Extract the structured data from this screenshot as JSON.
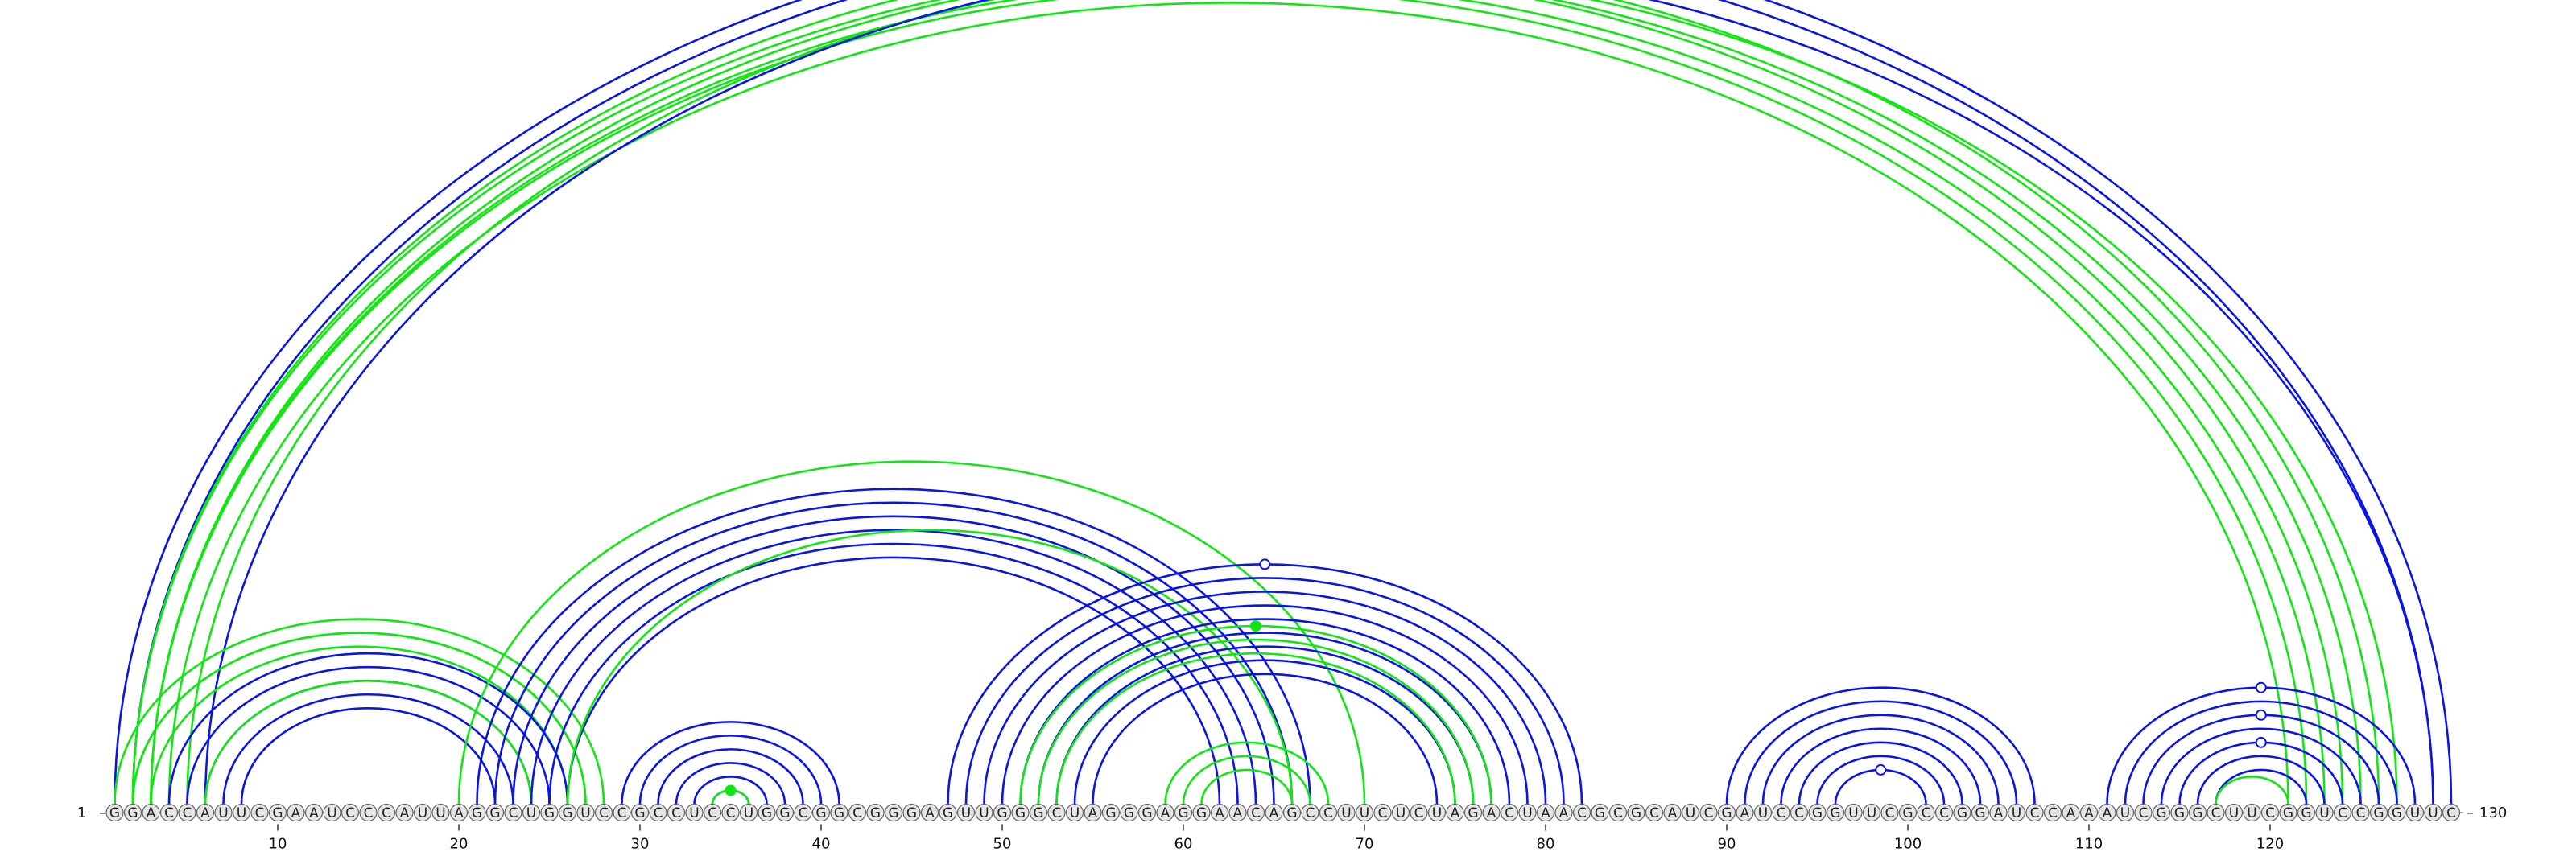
{
  "sequence": "GGACCAUUCGAAUCCCAUUAGGCUGGUCCGCCUCCUGGCGGCGGGAGUUGGGCUAGGGAGGAACAGCCUUCUCUAGACUAACGCGCAUCGAUCCGGUUCGCCGGAUCCAAAUCGGGCUUCGGUCCGGUUC",
  "start_label": "1",
  "end_label": "130",
  "ticks": [
    {
      "pos": 10,
      "label": "10"
    },
    {
      "pos": 20,
      "label": "20"
    },
    {
      "pos": 30,
      "label": "30"
    },
    {
      "pos": 40,
      "label": "40"
    },
    {
      "pos": 50,
      "label": "50"
    },
    {
      "pos": 60,
      "label": "60"
    },
    {
      "pos": 70,
      "label": "70"
    },
    {
      "pos": 80,
      "label": "80"
    },
    {
      "pos": 90,
      "label": "90"
    },
    {
      "pos": 100,
      "label": "100"
    },
    {
      "pos": 110,
      "label": "110"
    },
    {
      "pos": 120,
      "label": "120"
    }
  ],
  "colors": {
    "blue": "#0a14e6",
    "green": "#12e612",
    "outline": "#666666",
    "base_fill": "#e6e6e6"
  },
  "helices": [
    {
      "color": "blue",
      "i": 1,
      "j": 130,
      "n": 2
    },
    {
      "color": "green",
      "i": 2,
      "j": 126,
      "n": 2
    },
    {
      "color": "green",
      "i": 2,
      "j": 124,
      "n": 2
    },
    {
      "color": "green",
      "i": 3,
      "j": 122,
      "n": 2
    },
    {
      "color": "green",
      "i": 5,
      "j": 127,
      "n": 1
    },
    {
      "color": "blue",
      "i": 6,
      "j": 129,
      "n": 1
    },
    {
      "color": "green",
      "i": 1,
      "j": 28,
      "n": 2
    },
    {
      "color": "green",
      "i": 2,
      "j": 27,
      "n": 2
    },
    {
      "color": "blue",
      "i": 4,
      "j": 26,
      "n": 5
    },
    {
      "color": "green",
      "i": 6,
      "j": 24,
      "n": 1
    },
    {
      "color": "blue",
      "i": 29,
      "j": 41,
      "n": 6
    },
    {
      "color": "green",
      "i": 34,
      "j": 36,
      "n": 1
    },
    {
      "color": "green",
      "i": 20,
      "j": 70,
      "n": 1
    },
    {
      "color": "blue",
      "i": 21,
      "j": 67,
      "n": 6
    },
    {
      "color": "green",
      "i": 26,
      "j": 66,
      "n": 1
    },
    {
      "color": "blue",
      "i": 47,
      "j": 82,
      "n": 9
    },
    {
      "color": "green",
      "i": 51,
      "j": 77,
      "n": 3
    },
    {
      "color": "green",
      "i": 59,
      "j": 68,
      "n": 3
    },
    {
      "color": "blue",
      "i": 90,
      "j": 107,
      "n": 7
    },
    {
      "color": "blue",
      "i": 111,
      "j": 128,
      "n": 7
    },
    {
      "color": "green",
      "i": 117,
      "j": 121,
      "n": 1
    }
  ],
  "markers": [
    {
      "color": "blue",
      "i": 1,
      "j": 130
    },
    {
      "color": "blue",
      "i": 47,
      "j": 82
    },
    {
      "color": "green",
      "i": 51,
      "j": 77
    },
    {
      "color": "blue",
      "i": 111,
      "j": 128
    },
    {
      "color": "blue",
      "i": 113,
      "j": 126
    },
    {
      "color": "blue",
      "i": 115,
      "j": 124
    },
    {
      "color": "green",
      "i": 34,
      "j": 36
    },
    {
      "color": "blue",
      "i": 96,
      "j": 101
    }
  ]
}
